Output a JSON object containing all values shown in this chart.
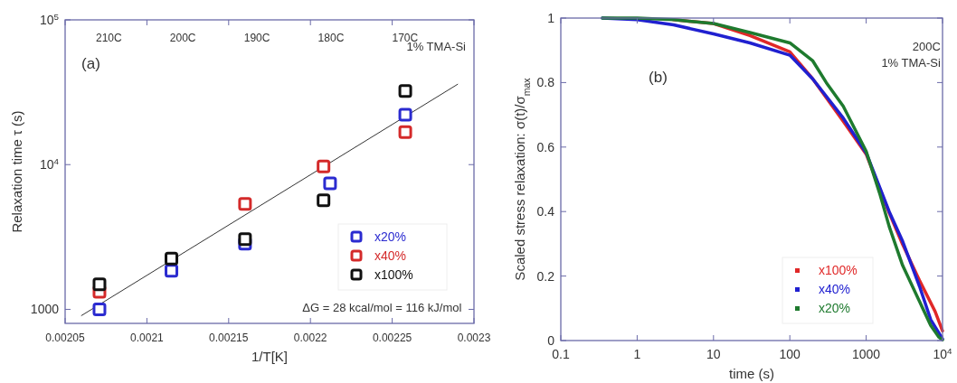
{
  "chart_data": [
    {
      "type": "scatter",
      "xlabel": "1/T[K]",
      "ylabel": "Relaxation time τ (s)",
      "log": "y",
      "xlim": [
        0.00205,
        0.0023
      ],
      "xticks": [
        0.00205,
        0.0021,
        0.00215,
        0.0022,
        0.00225,
        0.0023
      ],
      "ylim": [
        800,
        100000
      ],
      "yticks": [
        1000,
        {
          "value": 10000,
          "label": "10$^{4}$"
        },
        {
          "value": 100000,
          "label": "10$^{5}$"
        }
      ],
      "x2lim": [
        215.9,
        160.7
      ],
      "x2ticks": [
        {
          "value": 210,
          "label": "210C"
        },
        {
          "value": 200,
          "label": "200C"
        },
        {
          "value": 190,
          "label": "190C"
        },
        {
          "value": 180,
          "label": "180C"
        },
        {
          "value": 170,
          "label": "170C"
        }
      ],
      "marker": "square",
      "legend": "bottom right",
      "annotations": [
        "(a)",
        "1% TMA-Si",
        "ΔG = 28 kcal/mol = 116 kJ/mol"
      ],
      "x": [
        0.002071,
        0.002115,
        0.00216,
        0.002208,
        0.002258
      ],
      "series": [
        {
          "name": "x20%",
          "color": "#2b2bd0",
          "x": [
            0.002071,
            0.002115,
            0.00216,
            0.002212,
            0.002258
          ],
          "values": [
            1000,
            1850,
            2840,
            7430,
            22100
          ]
        },
        {
          "name": "x40%",
          "color": "#d42a2a",
          "values": [
            1325,
            null,
            5360,
            9730,
            16800
          ]
        },
        {
          "name": "x100%",
          "color": "#111111",
          "values": [
            1490,
            2240,
            3050,
            5660,
            32300
          ]
        },
        {
          "type": "line",
          "marker": "none",
          "color": "#333333",
          "x": [
            0.00206,
            0.00229
          ],
          "values": [
            906,
            35900
          ]
        }
      ]
    },
    {
      "type": "line",
      "xlabel": "time (s)",
      "ylabel": "Scaled stress relaxation: σ(t)/σ$_{max}$",
      "log": "x",
      "xlim": [
        0.1,
        10000
      ],
      "xticks": [
        0.1,
        1,
        10,
        100,
        1000,
        {
          "value": 10000,
          "label": "10$^{4}$"
        }
      ],
      "ylim": [
        0,
        1
      ],
      "yticks": [
        0,
        0.2,
        0.4,
        0.6,
        0.8,
        1
      ],
      "marker": "none",
      "legend": "bottom",
      "annotations": [
        "(b)",
        "200C",
        "1% TMA-Si"
      ],
      "series": [
        {
          "name": "x100%",
          "color": "#e02828",
          "x": [
            3,
            10,
            30,
            100,
            200,
            500,
            1000,
            2000,
            3000,
            5000,
            8000,
            10000
          ],
          "values": [
            0.995,
            0.983,
            0.946,
            0.895,
            0.811,
            0.68,
            0.578,
            0.396,
            0.298,
            0.186,
            0.09,
            0.03
          ]
        },
        {
          "name": "x40%",
          "color": "#2020d0",
          "x": [
            0.35,
            1,
            3,
            10,
            30,
            100,
            200,
            500,
            1000,
            2000,
            3000,
            5000,
            7000,
            10000
          ],
          "values": [
            1,
            0.995,
            0.979,
            0.951,
            0.923,
            0.885,
            0.811,
            0.69,
            0.582,
            0.4,
            0.308,
            0.168,
            0.065,
            0.005
          ]
        },
        {
          "name": "x20%",
          "color": "#1e7a2e",
          "x": [
            0.35,
            1,
            3,
            10,
            30,
            100,
            200,
            300,
            500,
            1000,
            1500,
            2000,
            3000,
            5000,
            7000,
            9000,
            10000
          ],
          "values": [
            1,
            1,
            0.995,
            0.983,
            0.955,
            0.923,
            0.867,
            0.8,
            0.727,
            0.587,
            0.457,
            0.354,
            0.233,
            0.121,
            0.047,
            0.01,
            0.002
          ]
        }
      ]
    }
  ]
}
